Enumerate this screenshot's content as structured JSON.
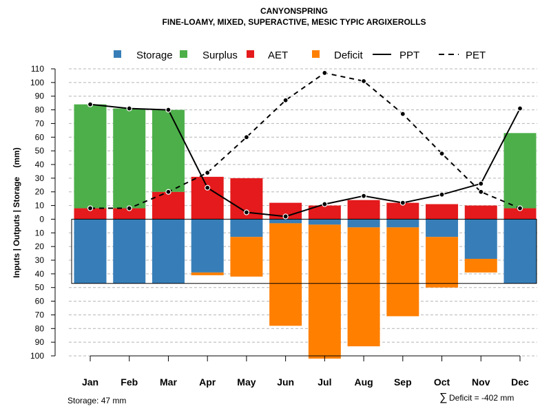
{
  "chart_data": {
    "type": "bar",
    "title": "CANYONSPRING",
    "subtitle": "FINE-LOAMY, MIXED, SUPERACTIVE, MESIC TYPIC ARGIXEROLLS",
    "ylabel": "Inputs | Outputs | Storage    (mm)",
    "categories": [
      "Jan",
      "Feb",
      "Mar",
      "Apr",
      "May",
      "Jun",
      "Jul",
      "Aug",
      "Sep",
      "Oct",
      "Nov",
      "Dec"
    ],
    "ylim": [
      -100,
      110
    ],
    "yticks": [
      110,
      100,
      90,
      80,
      70,
      60,
      50,
      40,
      30,
      20,
      10,
      0,
      -10,
      -20,
      -30,
      -40,
      -50,
      -60,
      -70,
      -80,
      -90,
      -100
    ],
    "ytick_labels": [
      "110",
      "100",
      "90",
      "80",
      "70",
      "60",
      "50",
      "40",
      "30",
      "20",
      "10",
      "0",
      "10",
      "20",
      "30",
      "40",
      "50",
      "60",
      "70",
      "80",
      "90",
      "100"
    ],
    "series": [
      {
        "name": "Storage",
        "color": "#377EB8",
        "values": [
          -47,
          -47,
          -47,
          -39,
          -13,
          -3,
          -4,
          -6,
          -6,
          -13,
          -29,
          -47
        ]
      },
      {
        "name": "Surplus",
        "color": "#4DAF4A",
        "values": [
          76,
          73,
          60,
          0,
          0,
          0,
          0,
          0,
          0,
          0,
          0,
          55
        ]
      },
      {
        "name": "AET",
        "color": "#E41A1C",
        "values": [
          8,
          8,
          20,
          31,
          30,
          12,
          10,
          14,
          12,
          11,
          10,
          8
        ]
      },
      {
        "name": "Deficit",
        "color": "#FF7F00",
        "values": [
          0,
          0,
          0,
          -2,
          -29,
          -75,
          -98,
          -87,
          -65,
          -37,
          -10,
          0
        ]
      },
      {
        "name": "PPT",
        "color": "#000000",
        "style": "solid",
        "values": [
          84,
          81,
          80,
          23,
          5,
          2,
          11,
          17,
          12,
          18,
          26,
          81
        ]
      },
      {
        "name": "PET",
        "color": "#000000",
        "style": "dashed",
        "values": [
          8,
          8,
          20,
          34,
          60,
          87,
          107,
          101,
          77,
          48,
          20,
          8
        ]
      }
    ],
    "storage_box": {
      "bottom": -47
    },
    "grid": true,
    "legend": {
      "position": "top",
      "labels": [
        "Storage",
        "Surplus",
        "AET",
        "Deficit",
        "PPT",
        "PET"
      ]
    }
  },
  "footer": {
    "storage_note": "Storage: 47 mm",
    "deficit_symbol": "∑",
    "deficit_note": "Deficit = -402 mm"
  }
}
